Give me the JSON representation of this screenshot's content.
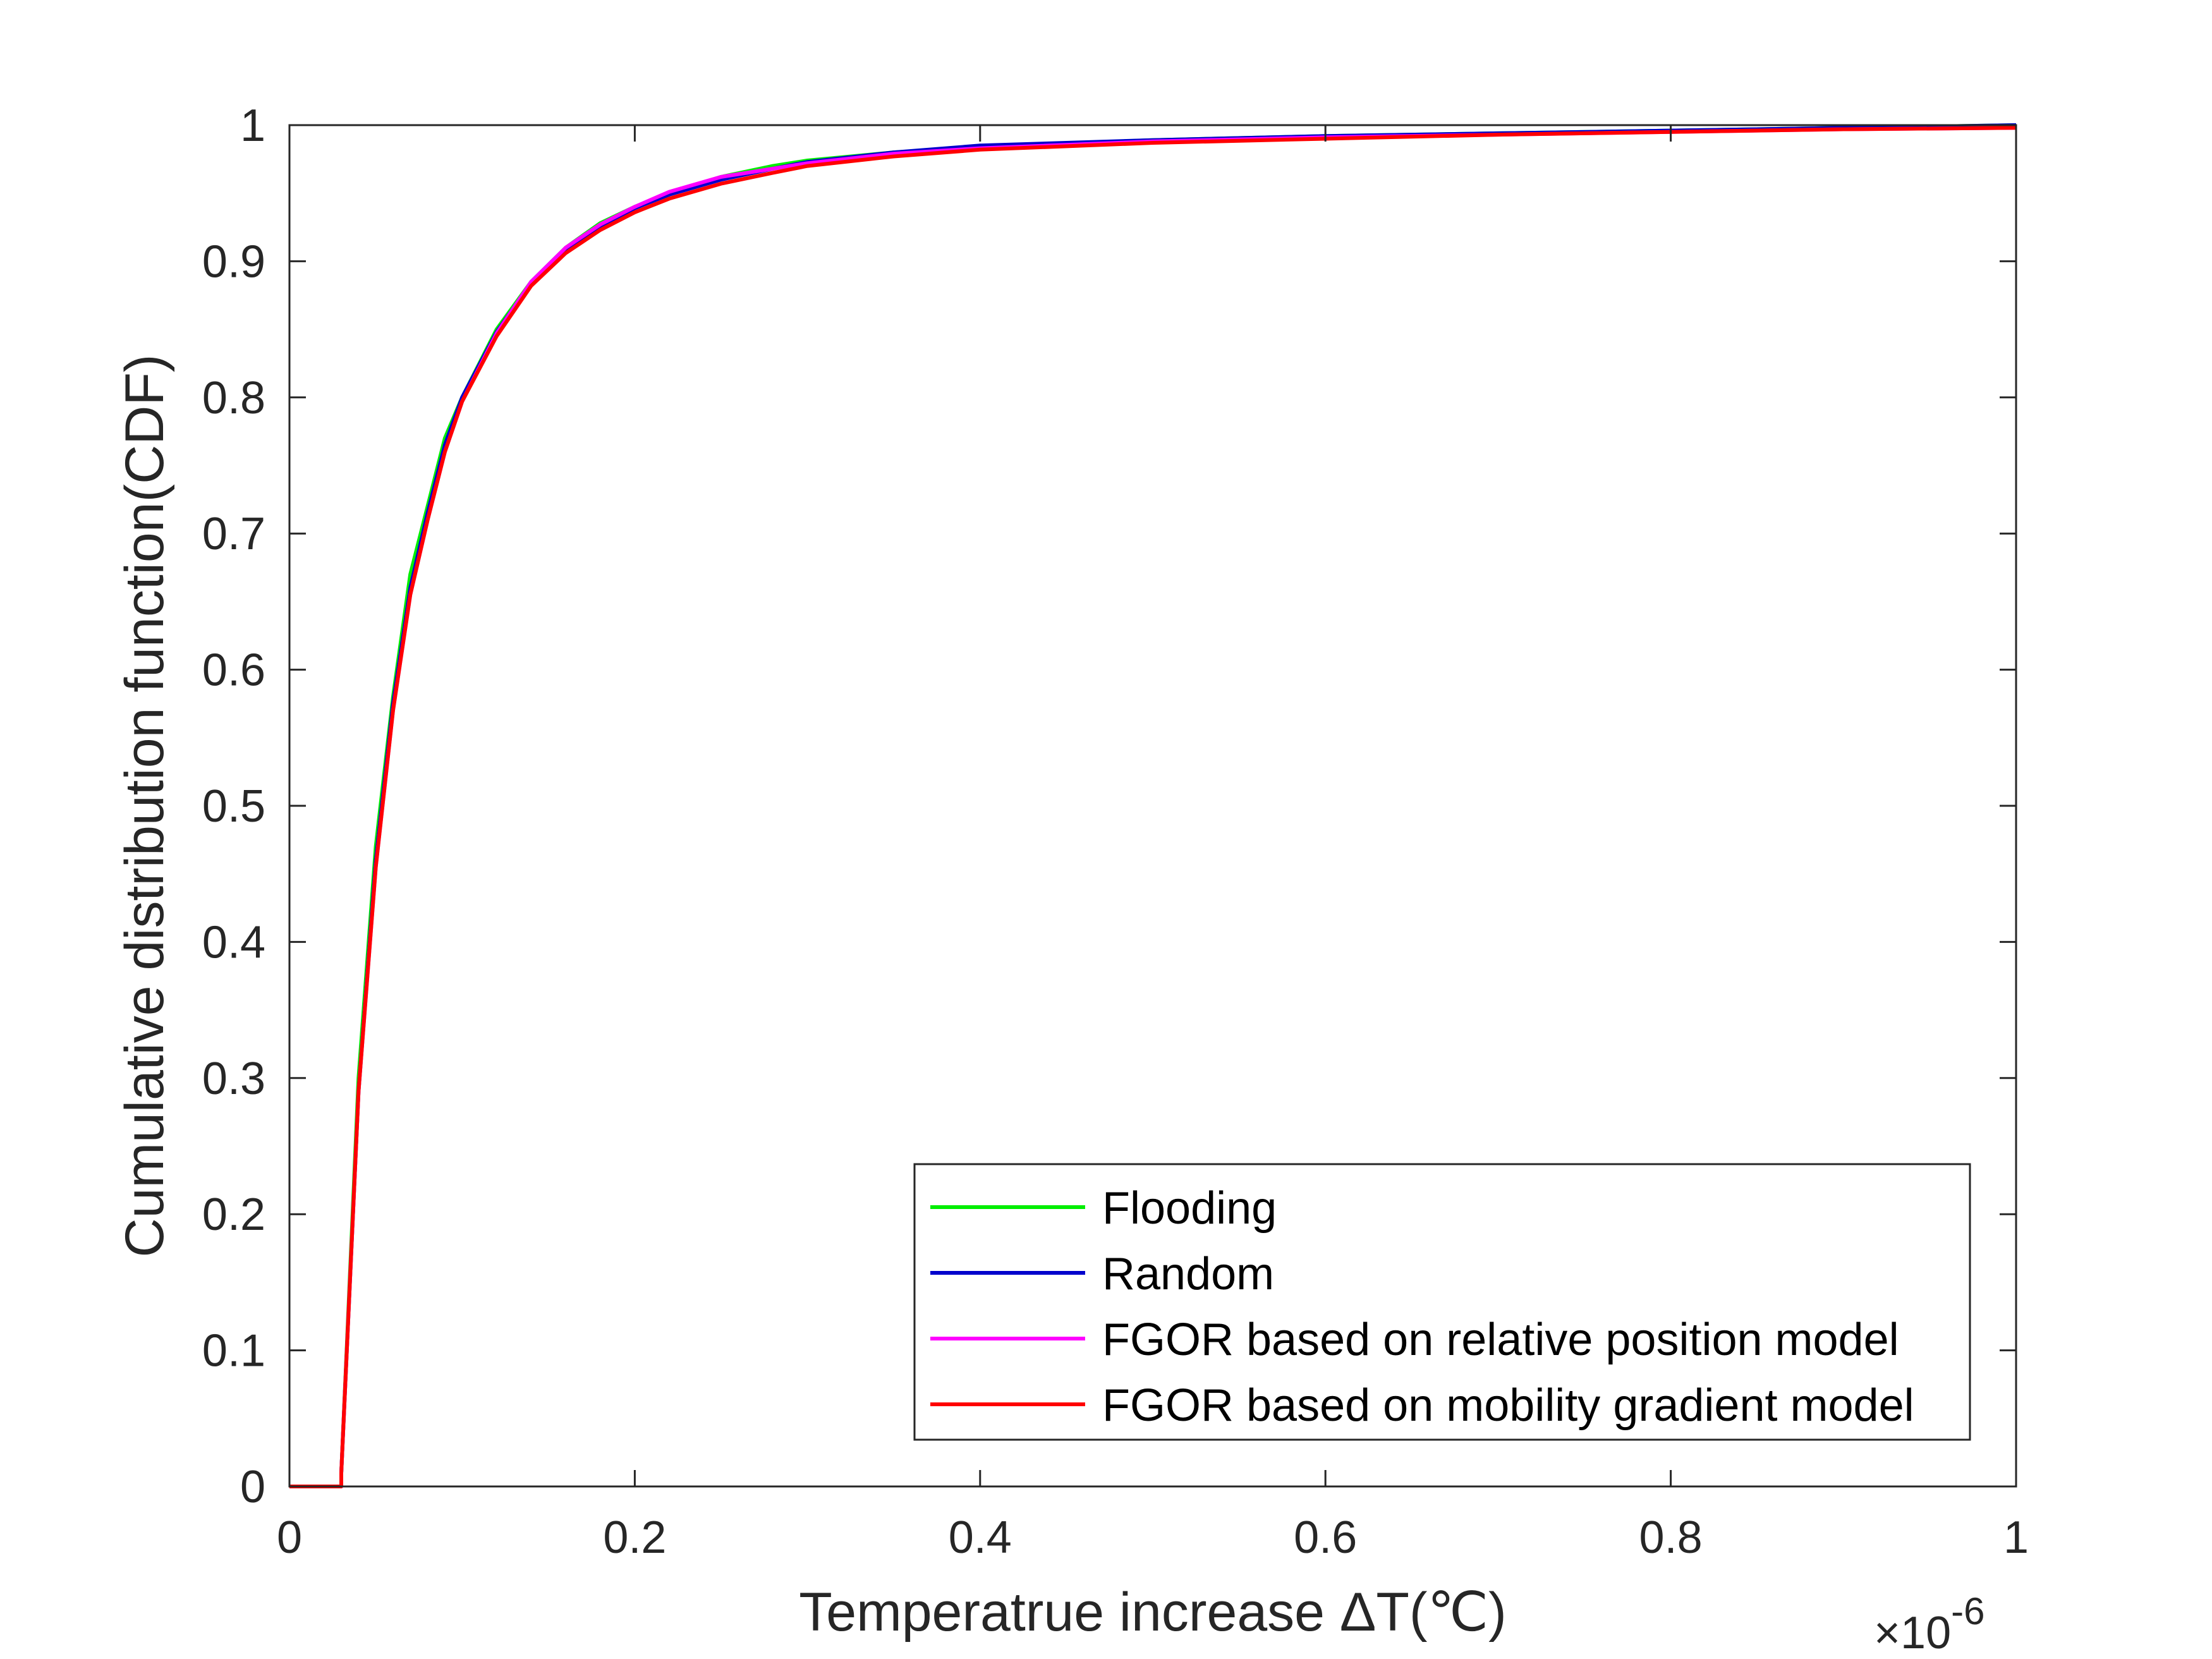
{
  "chart_data": {
    "type": "line",
    "title": "",
    "xlabel": "Temperatrue increase ΔT(℃)",
    "ylabel": "Cumulative distribution function(CDF)",
    "x_multiplier_base": "×10",
    "x_multiplier_exp": "-6",
    "xlim": [
      0,
      1
    ],
    "ylim": [
      0,
      1
    ],
    "xticks": [
      "0",
      "0.2",
      "0.4",
      "0.6",
      "0.8",
      "1"
    ],
    "yticks": [
      "0",
      "0.1",
      "0.2",
      "0.3",
      "0.4",
      "0.5",
      "0.6",
      "0.7",
      "0.8",
      "0.9",
      "1"
    ],
    "grid": false,
    "legend_position": "bottom-right",
    "series": [
      {
        "name": "Flooding",
        "color": "#00ee00",
        "x": [
          0,
          0.03,
          0.03,
          0.04,
          0.05,
          0.06,
          0.07,
          0.08,
          0.09,
          0.1,
          0.12,
          0.14,
          0.16,
          0.18,
          0.2,
          0.22,
          0.25,
          0.28,
          0.3,
          0.35,
          0.4,
          0.5,
          0.6,
          0.7,
          0.8,
          0.9,
          1.0
        ],
        "y": [
          0,
          0,
          0.01,
          0.3,
          0.47,
          0.58,
          0.67,
          0.72,
          0.77,
          0.8,
          0.85,
          0.885,
          0.91,
          0.928,
          0.94,
          0.95,
          0.962,
          0.97,
          0.974,
          0.98,
          0.984,
          0.989,
          0.992,
          0.994,
          0.996,
          0.998,
          1.0
        ]
      },
      {
        "name": "Random",
        "color": "#0000cc",
        "x": [
          0,
          0.03,
          0.03,
          0.04,
          0.05,
          0.06,
          0.07,
          0.08,
          0.09,
          0.1,
          0.12,
          0.14,
          0.16,
          0.18,
          0.2,
          0.22,
          0.25,
          0.28,
          0.3,
          0.35,
          0.4,
          0.5,
          0.6,
          0.7,
          0.8,
          0.9,
          1.0
        ],
        "y": [
          0,
          0,
          0.01,
          0.29,
          0.46,
          0.575,
          0.66,
          0.715,
          0.765,
          0.8,
          0.848,
          0.884,
          0.908,
          0.926,
          0.939,
          0.949,
          0.96,
          0.968,
          0.973,
          0.98,
          0.985,
          0.989,
          0.992,
          0.994,
          0.996,
          0.998,
          1.0
        ]
      },
      {
        "name": "FGOR based on relative position model",
        "color": "#ff00ff",
        "x": [
          0,
          0.03,
          0.03,
          0.04,
          0.05,
          0.06,
          0.07,
          0.08,
          0.09,
          0.1,
          0.12,
          0.14,
          0.16,
          0.18,
          0.2,
          0.22,
          0.25,
          0.28,
          0.3,
          0.35,
          0.4,
          0.5,
          0.6,
          0.7,
          0.8,
          0.9,
          1.0
        ],
        "y": [
          0,
          0,
          0.01,
          0.29,
          0.455,
          0.57,
          0.655,
          0.71,
          0.76,
          0.797,
          0.847,
          0.885,
          0.91,
          0.927,
          0.94,
          0.951,
          0.962,
          0.968,
          0.972,
          0.979,
          0.983,
          0.988,
          0.991,
          0.993,
          0.995,
          0.997,
          0.998
        ]
      },
      {
        "name": "FGOR based on mobility gradient model",
        "color": "#ff0000",
        "x": [
          0,
          0.03,
          0.03,
          0.04,
          0.05,
          0.06,
          0.07,
          0.08,
          0.09,
          0.1,
          0.12,
          0.14,
          0.16,
          0.18,
          0.2,
          0.22,
          0.25,
          0.28,
          0.3,
          0.35,
          0.4,
          0.5,
          0.6,
          0.7,
          0.8,
          0.9,
          1.0
        ],
        "y": [
          0,
          0,
          0.01,
          0.29,
          0.455,
          0.57,
          0.655,
          0.71,
          0.76,
          0.797,
          0.845,
          0.882,
          0.906,
          0.923,
          0.936,
          0.946,
          0.957,
          0.965,
          0.97,
          0.977,
          0.982,
          0.987,
          0.99,
          0.993,
          0.995,
          0.997,
          0.998
        ]
      }
    ]
  }
}
